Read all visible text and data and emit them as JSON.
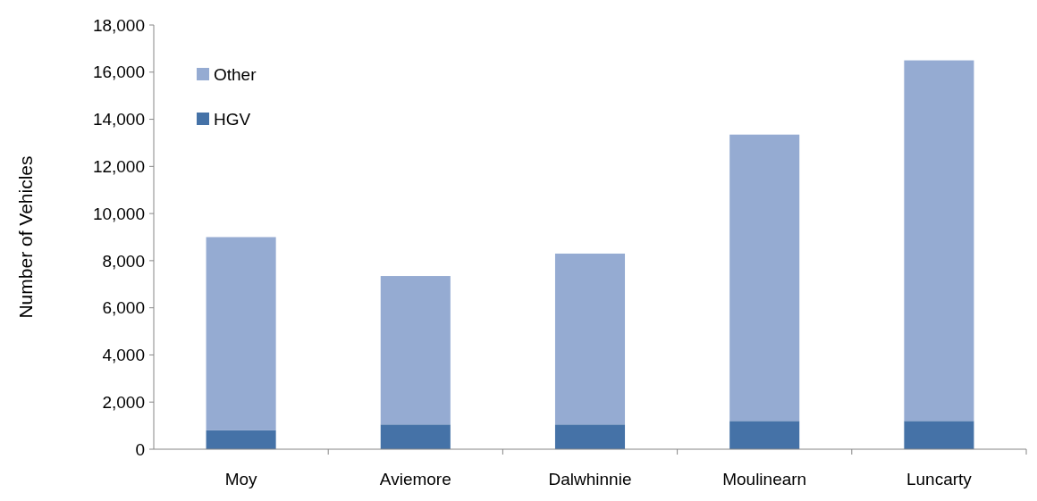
{
  "chart_data": {
    "type": "bar",
    "stacked": true,
    "ylabel": "Number of Vehicles",
    "categories": [
      "Moy",
      "Aviemore",
      "Dalwhinnie",
      "Moulinearn",
      "Luncarty"
    ],
    "series": [
      {
        "name": "HGV",
        "color": "#4572a7",
        "values": [
          800,
          1050,
          1050,
          1200,
          1200
        ]
      },
      {
        "name": "Other",
        "color": "#95abd2",
        "values": [
          8200,
          6300,
          7250,
          12150,
          15300
        ]
      }
    ],
    "ylim": [
      0,
      18000
    ],
    "yticks": [
      {
        "value": 0,
        "label": "0"
      },
      {
        "value": 2000,
        "label": "2,000"
      },
      {
        "value": 4000,
        "label": "4,000"
      },
      {
        "value": 6000,
        "label": "6,000"
      },
      {
        "value": 8000,
        "label": "8,000"
      },
      {
        "value": 10000,
        "label": "10,000"
      },
      {
        "value": 12000,
        "label": "12,000"
      },
      {
        "value": 14000,
        "label": "14,000"
      },
      {
        "value": 16000,
        "label": "16,000"
      },
      {
        "value": 18000,
        "label": "18,000"
      }
    ],
    "legend": "top left"
  }
}
